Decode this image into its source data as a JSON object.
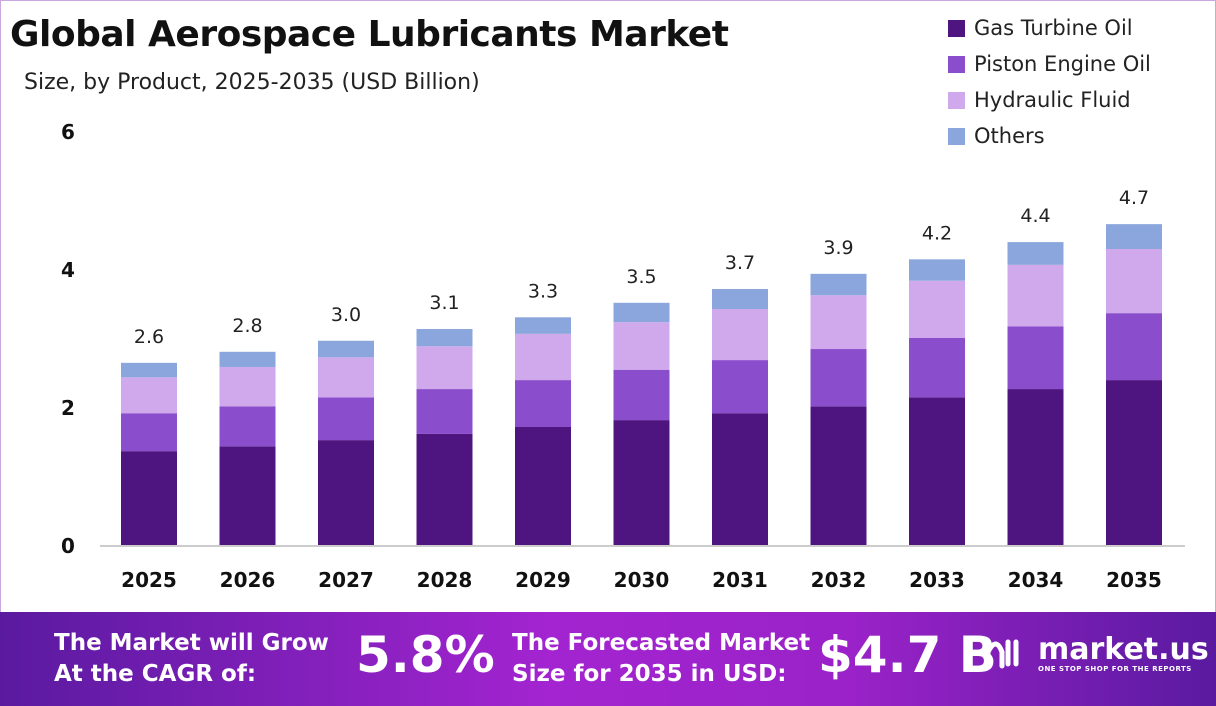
{
  "chart_data": {
    "type": "stacked-bar",
    "title": "Global Aerospace Lubricants Market",
    "subtitle": "Size, by Product, 2025-2035 (USD Billion)",
    "categories": [
      "2025",
      "2026",
      "2027",
      "2028",
      "2029",
      "2030",
      "2031",
      "2032",
      "2033",
      "2034",
      "2035"
    ],
    "series": [
      {
        "name": "Gas Turbine Oil",
        "color": "#4e1580",
        "values": [
          1.36,
          1.43,
          1.52,
          1.61,
          1.71,
          1.81,
          1.91,
          2.01,
          2.14,
          2.26,
          2.39
        ]
      },
      {
        "name": "Piston Engine Oil",
        "color": "#8a4dcc",
        "values": [
          0.55,
          0.58,
          0.62,
          0.65,
          0.68,
          0.73,
          0.77,
          0.83,
          0.86,
          0.91,
          0.97
        ]
      },
      {
        "name": "Hydraulic Fluid",
        "color": "#d0a8ec",
        "values": [
          0.52,
          0.57,
          0.58,
          0.62,
          0.67,
          0.69,
          0.74,
          0.78,
          0.83,
          0.89,
          0.93
        ]
      },
      {
        "name": "Others",
        "color": "#8ba6dc",
        "values": [
          0.21,
          0.22,
          0.24,
          0.25,
          0.24,
          0.28,
          0.29,
          0.31,
          0.31,
          0.33,
          0.36
        ]
      }
    ],
    "totals": [
      "2.6",
      "2.8",
      "3.0",
      "3.1",
      "3.3",
      "3.5",
      "3.7",
      "3.9",
      "4.2",
      "4.4",
      "4.7"
    ],
    "yticks": [
      "0",
      "2",
      "4",
      "6"
    ],
    "ylim": [
      0,
      6
    ],
    "grid": false,
    "legend": "top-right"
  },
  "footer": {
    "cagr_label_1": "The Market will Grow",
    "cagr_label_2": "At the CAGR of:",
    "cagr_value": "5.8%",
    "size_label_1": "The Forecasted Market",
    "size_label_2": "Size for 2035 in USD:",
    "size_value": "$4.7 B",
    "logo_name": "market.us",
    "logo_tagline": "ONE STOP SHOP FOR THE REPORTS"
  }
}
